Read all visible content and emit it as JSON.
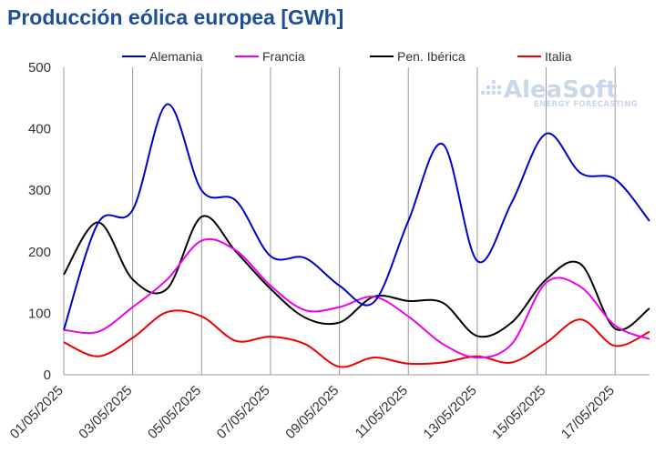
{
  "chart_data": {
    "type": "line",
    "title": "Producción eólica europea [GWh]",
    "xlabel": "",
    "ylabel": "",
    "ylim": [
      0,
      500
    ],
    "yticks": [
      0,
      100,
      200,
      300,
      400,
      500
    ],
    "xlim": [
      "01/05/2025",
      "18/05/2025"
    ],
    "xtick_labels": [
      "01/05/2025",
      "03/05/2025",
      "05/05/2025",
      "07/05/2025",
      "09/05/2025",
      "11/05/2025",
      "13/05/2025",
      "15/05/2025",
      "17/05/2025"
    ],
    "x": [
      "01/05/2025",
      "02/05/2025",
      "03/05/2025",
      "04/05/2025",
      "05/05/2025",
      "06/05/2025",
      "07/05/2025",
      "08/05/2025",
      "09/05/2025",
      "10/05/2025",
      "11/05/2025",
      "12/05/2025",
      "13/05/2025",
      "14/05/2025",
      "15/05/2025",
      "16/05/2025",
      "17/05/2025",
      "18/05/2025"
    ],
    "grid": "vertical",
    "legend": "top",
    "watermark": {
      "main": "AleaSoft",
      "sub": "ENERGY FORECASTING"
    },
    "series": [
      {
        "name": "Alemania",
        "color": "#0000cc",
        "values": [
          73,
          247,
          268,
          440,
          300,
          283,
          193,
          190,
          145,
          118,
          250,
          375,
          185,
          280,
          392,
          328,
          318,
          250
        ]
      },
      {
        "name": "Francia",
        "color": "#ee00ee",
        "values": [
          73,
          70,
          110,
          155,
          218,
          202,
          145,
          105,
          110,
          127,
          95,
          50,
          28,
          50,
          150,
          143,
          80,
          58
        ]
      },
      {
        "name": "Pen. Ibérica",
        "color": "#000000",
        "values": [
          163,
          248,
          155,
          140,
          257,
          200,
          140,
          93,
          85,
          127,
          120,
          117,
          63,
          85,
          155,
          180,
          75,
          108
        ]
      },
      {
        "name": "Italia",
        "color": "#ee0000",
        "values": [
          53,
          30,
          60,
          102,
          95,
          55,
          62,
          50,
          13,
          28,
          18,
          20,
          30,
          20,
          52,
          90,
          47,
          70
        ]
      }
    ]
  }
}
